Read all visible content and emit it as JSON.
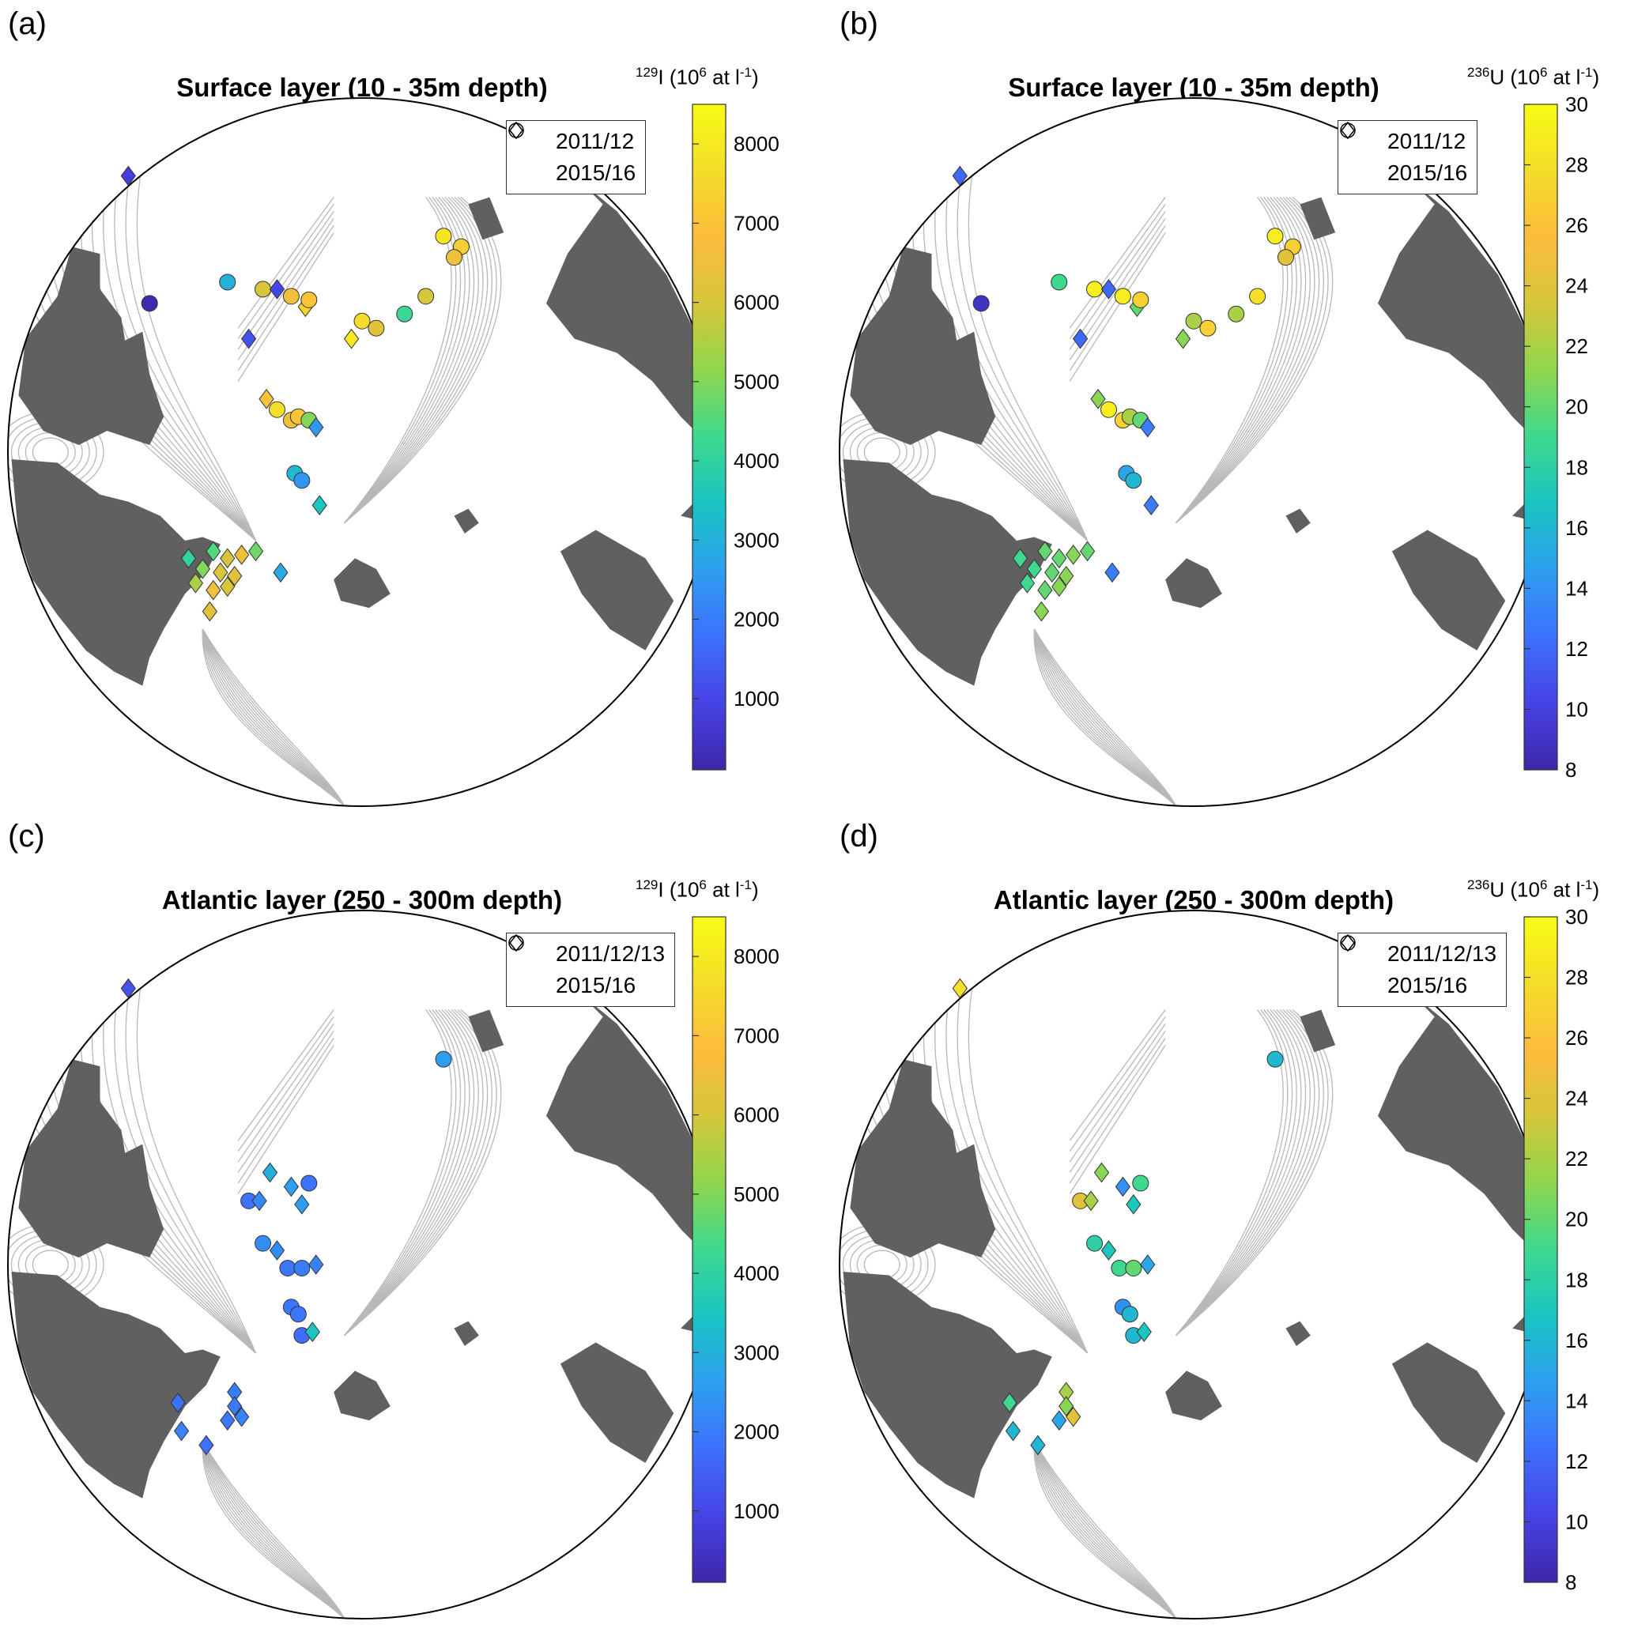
{
  "legend_symbols": {
    "circle": "circle-icon",
    "diamond": "diamond-icon"
  },
  "colormap": [
    "#3e26a8",
    "#4743e6",
    "#3d70fe",
    "#2e9ff0",
    "#1ac4c2",
    "#3ed88f",
    "#8fd64e",
    "#d6c63a",
    "#fdbc3c",
    "#f4dd2a",
    "#f9fb15"
  ],
  "panels": [
    {
      "label": "(a)",
      "title": "Surface layer (10 - 35m depth)",
      "legend": [
        "2011/12",
        "2015/16"
      ],
      "colorbar": {
        "isotope_sup": "129",
        "isotope": "I",
        "units_pre": "(10",
        "units_sup": "6",
        "units_mid": " at l",
        "units_sup2": "-1",
        "units_post": ")",
        "min": 100,
        "max": 8500,
        "ticks": [
          1000,
          2000,
          3000,
          4000,
          5000,
          6000,
          7000,
          8000
        ]
      },
      "points": [
        {
          "m": "d",
          "v": 800,
          "x": -0.66,
          "y": -0.78
        },
        {
          "m": "c",
          "v": 200,
          "x": -0.6,
          "y": -0.42
        },
        {
          "m": "c",
          "v": 3000,
          "x": -0.38,
          "y": -0.48
        },
        {
          "m": "d",
          "v": 1200,
          "x": -0.32,
          "y": -0.32
        },
        {
          "m": "c",
          "v": 6000,
          "x": -0.28,
          "y": -0.46
        },
        {
          "m": "d",
          "v": 1000,
          "x": -0.24,
          "y": -0.46
        },
        {
          "m": "c",
          "v": 6500,
          "x": -0.2,
          "y": -0.44
        },
        {
          "m": "d",
          "v": 7500,
          "x": -0.16,
          "y": -0.41
        },
        {
          "m": "c",
          "v": 7000,
          "x": -0.15,
          "y": -0.43
        },
        {
          "m": "d",
          "v": 8000,
          "x": -0.03,
          "y": -0.32
        },
        {
          "m": "c",
          "v": 7600,
          "x": 0.0,
          "y": -0.37
        },
        {
          "m": "c",
          "v": 6200,
          "x": 0.04,
          "y": -0.35
        },
        {
          "m": "c",
          "v": 4200,
          "x": 0.12,
          "y": -0.39
        },
        {
          "m": "c",
          "v": 6000,
          "x": 0.18,
          "y": -0.44
        },
        {
          "m": "c",
          "v": 7900,
          "x": 0.23,
          "y": -0.61
        },
        {
          "m": "c",
          "v": 7300,
          "x": 0.28,
          "y": -0.58
        },
        {
          "m": "c",
          "v": 6500,
          "x": 0.26,
          "y": -0.55
        },
        {
          "m": "d",
          "v": 7000,
          "x": -0.27,
          "y": -0.15
        },
        {
          "m": "c",
          "v": 7700,
          "x": -0.24,
          "y": -0.12
        },
        {
          "m": "c",
          "v": 6500,
          "x": -0.2,
          "y": -0.09
        },
        {
          "m": "c",
          "v": 7000,
          "x": -0.18,
          "y": -0.1
        },
        {
          "m": "c",
          "v": 5000,
          "x": -0.15,
          "y": -0.09
        },
        {
          "m": "d",
          "v": 2500,
          "x": -0.13,
          "y": -0.07
        },
        {
          "m": "c",
          "v": 3200,
          "x": -0.19,
          "y": 0.06
        },
        {
          "m": "c",
          "v": 2500,
          "x": -0.17,
          "y": 0.08
        },
        {
          "m": "d",
          "v": 3500,
          "x": -0.12,
          "y": 0.15
        },
        {
          "m": "d",
          "v": 4000,
          "x": -0.49,
          "y": 0.3
        },
        {
          "m": "d",
          "v": 4500,
          "x": -0.42,
          "y": 0.28
        },
        {
          "m": "d",
          "v": 6000,
          "x": -0.38,
          "y": 0.3
        },
        {
          "m": "d",
          "v": 6500,
          "x": -0.34,
          "y": 0.29
        },
        {
          "m": "d",
          "v": 4800,
          "x": -0.3,
          "y": 0.28
        },
        {
          "m": "d",
          "v": 5000,
          "x": -0.45,
          "y": 0.33
        },
        {
          "m": "d",
          "v": 6000,
          "x": -0.4,
          "y": 0.34
        },
        {
          "m": "d",
          "v": 6200,
          "x": -0.36,
          "y": 0.35
        },
        {
          "m": "d",
          "v": 5500,
          "x": -0.47,
          "y": 0.37
        },
        {
          "m": "d",
          "v": 6500,
          "x": -0.42,
          "y": 0.39
        },
        {
          "m": "d",
          "v": 6000,
          "x": -0.38,
          "y": 0.38
        },
        {
          "m": "d",
          "v": 6200,
          "x": -0.43,
          "y": 0.45
        },
        {
          "m": "d",
          "v": 2800,
          "x": -0.23,
          "y": 0.34
        }
      ]
    },
    {
      "label": "(b)",
      "title": "Surface layer (10 - 35m depth)",
      "legend": [
        "2011/12",
        "2015/16"
      ],
      "colorbar": {
        "isotope_sup": "236",
        "isotope": "U",
        "units_pre": "(10",
        "units_sup": "6",
        "units_mid": " at l",
        "units_sup2": "-1",
        "units_post": ")",
        "min": 8,
        "max": 30,
        "ticks": [
          8,
          10,
          12,
          14,
          16,
          18,
          20,
          22,
          24,
          26,
          28,
          30
        ]
      },
      "points": [
        {
          "m": "d",
          "v": 12,
          "x": -0.66,
          "y": -0.78
        },
        {
          "m": "c",
          "v": 9,
          "x": -0.6,
          "y": -0.42
        },
        {
          "m": "c",
          "v": 19,
          "x": -0.38,
          "y": -0.48
        },
        {
          "m": "d",
          "v": 12,
          "x": -0.32,
          "y": -0.32
        },
        {
          "m": "c",
          "v": 29,
          "x": -0.28,
          "y": -0.46
        },
        {
          "m": "d",
          "v": 12,
          "x": -0.24,
          "y": -0.46
        },
        {
          "m": "c",
          "v": 29,
          "x": -0.2,
          "y": -0.44
        },
        {
          "m": "d",
          "v": 20,
          "x": -0.16,
          "y": -0.41
        },
        {
          "m": "c",
          "v": 27,
          "x": -0.15,
          "y": -0.43
        },
        {
          "m": "d",
          "v": 21,
          "x": -0.03,
          "y": -0.32
        },
        {
          "m": "c",
          "v": 22,
          "x": 0.0,
          "y": -0.37
        },
        {
          "m": "c",
          "v": 27,
          "x": 0.04,
          "y": -0.35
        },
        {
          "m": "c",
          "v": 22,
          "x": 0.12,
          "y": -0.39
        },
        {
          "m": "c",
          "v": 28,
          "x": 0.18,
          "y": -0.44
        },
        {
          "m": "c",
          "v": 29,
          "x": 0.23,
          "y": -0.61
        },
        {
          "m": "c",
          "v": 27,
          "x": 0.28,
          "y": -0.58
        },
        {
          "m": "c",
          "v": 24,
          "x": 0.26,
          "y": -0.55
        },
        {
          "m": "d",
          "v": 21,
          "x": -0.27,
          "y": -0.15
        },
        {
          "m": "c",
          "v": 29,
          "x": -0.24,
          "y": -0.12
        },
        {
          "m": "c",
          "v": 27,
          "x": -0.2,
          "y": -0.09
        },
        {
          "m": "c",
          "v": 22,
          "x": -0.18,
          "y": -0.1
        },
        {
          "m": "c",
          "v": 20,
          "x": -0.15,
          "y": -0.09
        },
        {
          "m": "d",
          "v": 13,
          "x": -0.13,
          "y": -0.07
        },
        {
          "m": "c",
          "v": 15,
          "x": -0.19,
          "y": 0.06
        },
        {
          "m": "c",
          "v": 16,
          "x": -0.17,
          "y": 0.08
        },
        {
          "m": "d",
          "v": 13,
          "x": -0.12,
          "y": 0.15
        },
        {
          "m": "d",
          "v": 19,
          "x": -0.49,
          "y": 0.3
        },
        {
          "m": "d",
          "v": 20,
          "x": -0.42,
          "y": 0.28
        },
        {
          "m": "d",
          "v": 20,
          "x": -0.38,
          "y": 0.3
        },
        {
          "m": "d",
          "v": 21,
          "x": -0.34,
          "y": 0.29
        },
        {
          "m": "d",
          "v": 20,
          "x": -0.3,
          "y": 0.28
        },
        {
          "m": "d",
          "v": 19,
          "x": -0.45,
          "y": 0.33
        },
        {
          "m": "d",
          "v": 20,
          "x": -0.4,
          "y": 0.34
        },
        {
          "m": "d",
          "v": 21,
          "x": -0.36,
          "y": 0.35
        },
        {
          "m": "d",
          "v": 19,
          "x": -0.47,
          "y": 0.37
        },
        {
          "m": "d",
          "v": 20,
          "x": -0.42,
          "y": 0.39
        },
        {
          "m": "d",
          "v": 21,
          "x": -0.38,
          "y": 0.38
        },
        {
          "m": "d",
          "v": 21,
          "x": -0.43,
          "y": 0.45
        },
        {
          "m": "d",
          "v": 13,
          "x": -0.23,
          "y": 0.34
        }
      ]
    },
    {
      "label": "(c)",
      "title": "Atlantic layer (250 - 300m depth)",
      "legend": [
        "2011/12/13",
        "2015/16"
      ],
      "colorbar": {
        "isotope_sup": "129",
        "isotope": "I",
        "units_pre": "(10",
        "units_sup": "6",
        "units_mid": " at l",
        "units_sup2": "-1",
        "units_post": ")",
        "min": 100,
        "max": 8500,
        "ticks": [
          1000,
          2000,
          3000,
          4000,
          5000,
          6000,
          7000,
          8000
        ]
      },
      "points": [
        {
          "m": "d",
          "v": 1200,
          "x": -0.66,
          "y": -0.78
        },
        {
          "m": "c",
          "v": 2600,
          "x": 0.23,
          "y": -0.58
        },
        {
          "m": "d",
          "v": 3000,
          "x": -0.26,
          "y": -0.26
        },
        {
          "m": "c",
          "v": 1800,
          "x": -0.32,
          "y": -0.18
        },
        {
          "m": "d",
          "v": 2200,
          "x": -0.29,
          "y": -0.18
        },
        {
          "m": "d",
          "v": 2600,
          "x": -0.2,
          "y": -0.22
        },
        {
          "m": "c",
          "v": 1800,
          "x": -0.15,
          "y": -0.23
        },
        {
          "m": "d",
          "v": 2600,
          "x": -0.17,
          "y": -0.17
        },
        {
          "m": "c",
          "v": 2300,
          "x": -0.28,
          "y": -0.06
        },
        {
          "m": "d",
          "v": 2300,
          "x": -0.24,
          "y": -0.04
        },
        {
          "m": "c",
          "v": 1900,
          "x": -0.21,
          "y": 0.01
        },
        {
          "m": "c",
          "v": 2000,
          "x": -0.17,
          "y": 0.01
        },
        {
          "m": "d",
          "v": 2100,
          "x": -0.13,
          "y": 0.0
        },
        {
          "m": "c",
          "v": 1900,
          "x": -0.2,
          "y": 0.12
        },
        {
          "m": "c",
          "v": 1900,
          "x": -0.18,
          "y": 0.14
        },
        {
          "m": "c",
          "v": 1700,
          "x": -0.17,
          "y": 0.2
        },
        {
          "m": "d",
          "v": 3500,
          "x": -0.14,
          "y": 0.19
        },
        {
          "m": "d",
          "v": 1800,
          "x": -0.52,
          "y": 0.39
        },
        {
          "m": "d",
          "v": 2000,
          "x": -0.36,
          "y": 0.36
        },
        {
          "m": "d",
          "v": 2000,
          "x": -0.36,
          "y": 0.4
        },
        {
          "m": "d",
          "v": 2100,
          "x": -0.34,
          "y": 0.43
        },
        {
          "m": "d",
          "v": 1900,
          "x": -0.38,
          "y": 0.44
        },
        {
          "m": "d",
          "v": 2100,
          "x": -0.51,
          "y": 0.47
        },
        {
          "m": "d",
          "v": 1800,
          "x": -0.44,
          "y": 0.51
        }
      ]
    },
    {
      "label": "(d)",
      "title": "Atlantic layer (250 - 300m depth)",
      "legend": [
        "2011/12/13",
        "2015/16"
      ],
      "colorbar": {
        "isotope_sup": "236",
        "isotope": "U",
        "units_pre": "(10",
        "units_sup": "6",
        "units_mid": " at l",
        "units_sup2": "-1",
        "units_post": ")",
        "min": 8,
        "max": 30,
        "ticks": [
          8,
          10,
          12,
          14,
          16,
          18,
          20,
          22,
          24,
          26,
          28,
          30
        ]
      },
      "points": [
        {
          "m": "d",
          "v": 28,
          "x": -0.66,
          "y": -0.78
        },
        {
          "m": "c",
          "v": 16,
          "x": 0.23,
          "y": -0.58
        },
        {
          "m": "d",
          "v": 21,
          "x": -0.26,
          "y": -0.26
        },
        {
          "m": "c",
          "v": 24,
          "x": -0.32,
          "y": -0.18
        },
        {
          "m": "d",
          "v": 22,
          "x": -0.29,
          "y": -0.18
        },
        {
          "m": "d",
          "v": 14,
          "x": -0.2,
          "y": -0.22
        },
        {
          "m": "c",
          "v": 19,
          "x": -0.15,
          "y": -0.23
        },
        {
          "m": "d",
          "v": 17,
          "x": -0.17,
          "y": -0.17
        },
        {
          "m": "c",
          "v": 18,
          "x": -0.28,
          "y": -0.06
        },
        {
          "m": "d",
          "v": 17,
          "x": -0.24,
          "y": -0.04
        },
        {
          "m": "c",
          "v": 19,
          "x": -0.21,
          "y": 0.01
        },
        {
          "m": "c",
          "v": 20,
          "x": -0.17,
          "y": 0.01
        },
        {
          "m": "d",
          "v": 15,
          "x": -0.13,
          "y": 0.0
        },
        {
          "m": "c",
          "v": 14,
          "x": -0.2,
          "y": 0.12
        },
        {
          "m": "c",
          "v": 16,
          "x": -0.18,
          "y": 0.14
        },
        {
          "m": "c",
          "v": 16,
          "x": -0.17,
          "y": 0.2
        },
        {
          "m": "d",
          "v": 17,
          "x": -0.14,
          "y": 0.19
        },
        {
          "m": "d",
          "v": 19,
          "x": -0.52,
          "y": 0.39
        },
        {
          "m": "d",
          "v": 22,
          "x": -0.36,
          "y": 0.36
        },
        {
          "m": "d",
          "v": 21,
          "x": -0.36,
          "y": 0.4
        },
        {
          "m": "d",
          "v": 24,
          "x": -0.34,
          "y": 0.43
        },
        {
          "m": "d",
          "v": 15,
          "x": -0.38,
          "y": 0.44
        },
        {
          "m": "d",
          "v": 16,
          "x": -0.51,
          "y": 0.47
        },
        {
          "m": "d",
          "v": 16,
          "x": -0.44,
          "y": 0.51
        }
      ]
    }
  ]
}
